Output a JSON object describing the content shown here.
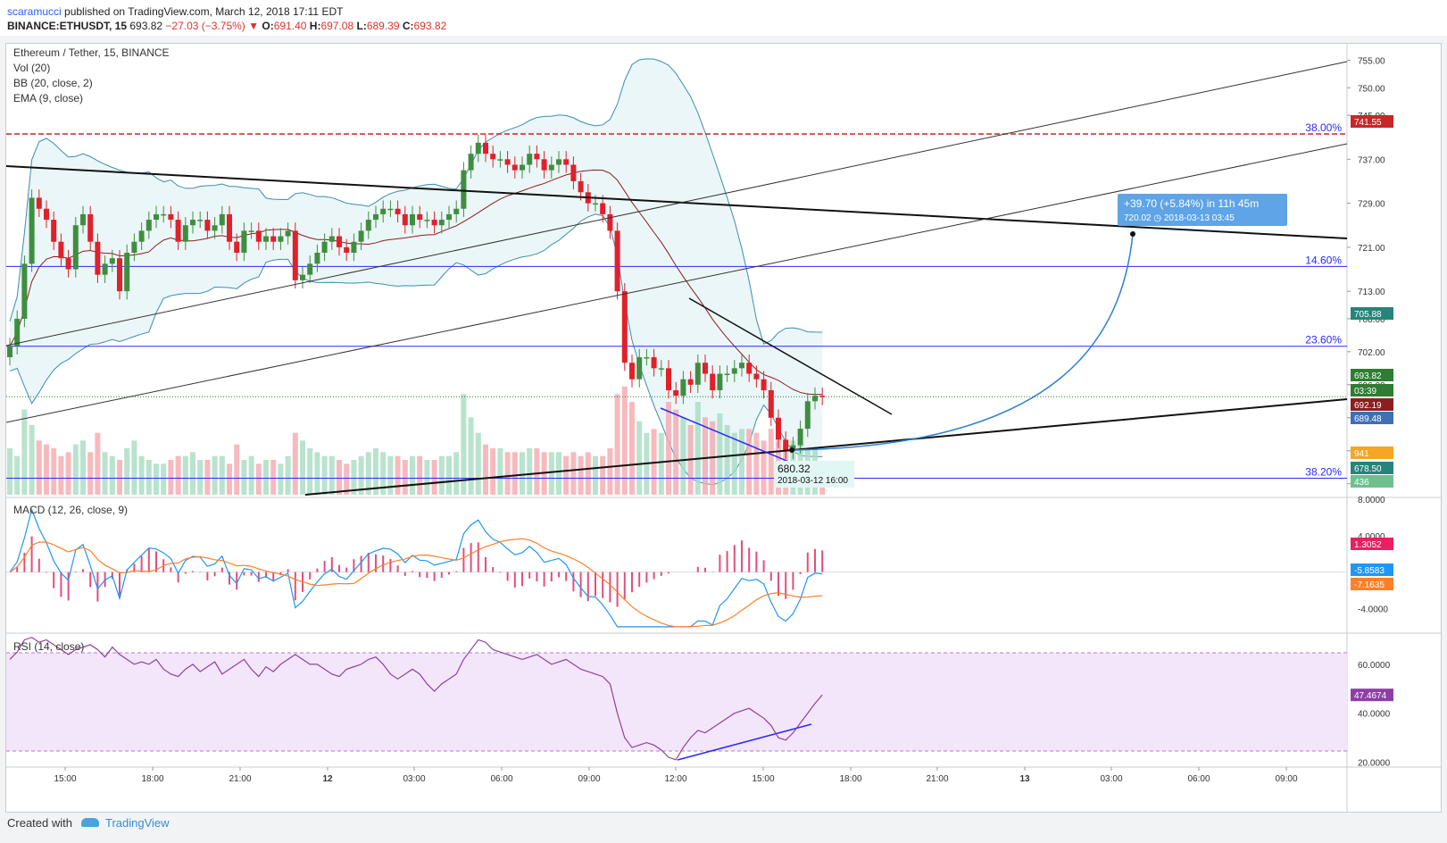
{
  "header": {
    "author": "scaramucci",
    "published": "published on TradingView.com, March 12, 2018 17:11 EDT",
    "symbol": "BINANCE:ETHUSDT, 15",
    "last": "693.82",
    "change": "−27.03 (−3.75%)",
    "arrow": "▼",
    "o_label": "O:",
    "o_value": "691.40",
    "h_label": "H:",
    "h_value": "697.08",
    "l_label": "L:",
    "l_value": "689.39",
    "c_label": "C:",
    "c_value": "693.82"
  },
  "legend": {
    "title": "Ethereum / Tether, 15, BINANCE",
    "vol": "Vol (20)",
    "bb": "BB (20, close, 2)",
    "ema": "EMA (9, close)",
    "macd": "MACD (12, 26, close, 9)",
    "rsi": "RSI (14, close)"
  },
  "footer": {
    "created": "Created with",
    "brand": "TradingView"
  },
  "colors": {
    "up": "#3f8e3f",
    "down": "#e0202a",
    "fib": "#2a2aff",
    "bb": "#3a8fa8",
    "ema": "#8b1f1f",
    "macd": "#2196f3",
    "signal": "#ff7f2a",
    "rsi": "#8e3fa6"
  },
  "chart_data": [
    {
      "type": "candlestick",
      "title": "Ethereum / Tether, 15, BINANCE",
      "ylim": [
        676,
        758
      ],
      "price_ticks": [
        "755.00",
        "750.00",
        "745.00",
        "737.00",
        "729.00",
        "721.00",
        "713.00",
        "708.00",
        "702.00",
        "696.00",
        "690.00",
        "684.00",
        "678.00"
      ],
      "time_ticks": [
        "15:00",
        "18:00",
        "21:00",
        "12",
        "03:00",
        "06:00",
        "09:00",
        "12:00",
        "15:00",
        "18:00",
        "21:00",
        "13",
        "03:00",
        "06:00",
        "09:00"
      ],
      "fib_levels": [
        {
          "label": "38.20%",
          "price": 679.0
        },
        {
          "label": "23.60%",
          "price": 703.0
        },
        {
          "label": "14.60%",
          "price": 717.5
        },
        {
          "label": "38.00%",
          "price": 741.6
        }
      ],
      "price_tags": [
        {
          "value": "741.55",
          "color": "#c62828"
        },
        {
          "value": "705.88",
          "color": "#26847a"
        },
        {
          "value": "693.82",
          "color": "#2e7d32"
        },
        {
          "value": "03:39",
          "color": "#2e7d32"
        },
        {
          "value": "692.19",
          "color": "#8b1f1f"
        },
        {
          "value": "689.48",
          "color": "#3f6fb5"
        },
        {
          "value": "941",
          "color": "#f5a623"
        },
        {
          "value": "678.50",
          "color": "#26847a"
        },
        {
          "value": "436",
          "color": "#6fbf8f"
        }
      ],
      "annotations": [
        {
          "text": "+39.70 (+5.84%) in 11h 45m"
        },
        {
          "text": "720.02  ◷ 2018-03-13  03:45"
        },
        {
          "text": "680.32"
        },
        {
          "text": "2018-03-12 16:00"
        }
      ],
      "close": [
        703,
        708,
        718,
        730,
        728,
        726,
        722,
        719,
        717,
        725,
        727,
        722,
        716,
        718,
        719,
        713,
        720,
        722,
        724,
        726,
        727,
        727,
        726,
        722,
        725,
        726,
        726,
        724,
        725,
        727,
        722,
        720,
        724,
        724,
        722,
        723,
        722,
        723,
        724,
        715,
        716,
        718,
        720,
        722,
        723,
        721,
        720,
        722,
        724,
        726,
        727,
        728,
        728,
        727,
        725,
        727,
        726,
        726,
        725,
        726,
        727,
        728,
        735,
        738,
        740,
        738,
        737,
        737,
        736,
        735,
        736,
        738,
        737,
        735,
        736,
        737,
        736,
        733,
        731,
        729,
        729,
        727,
        724,
        713,
        700,
        697,
        701,
        701,
        699,
        699,
        695,
        694,
        697,
        696,
        700,
        698,
        695,
        698,
        698,
        699,
        700,
        698,
        697,
        695,
        690,
        686,
        684,
        685,
        688,
        693,
        694,
        693.8
      ],
      "volume": [
        600,
        500,
        1100,
        900,
        700,
        650,
        600,
        500,
        550,
        650,
        700,
        550,
        800,
        550,
        500,
        450,
        600,
        700,
        500,
        450,
        400,
        400,
        450,
        500,
        500,
        550,
        450,
        450,
        500,
        500,
        400,
        650,
        450,
        500,
        400,
        450,
        450,
        400,
        500,
        800,
        700,
        600,
        550,
        500,
        500,
        450,
        400,
        450,
        500,
        550,
        600,
        550,
        500,
        500,
        450,
        500,
        500,
        450,
        450,
        500,
        500,
        550,
        1300,
        1000,
        800,
        650,
        600,
        600,
        550,
        550,
        550,
        600,
        600,
        550,
        550,
        550,
        500,
        550,
        500,
        550,
        500,
        500,
        600,
        1300,
        1400,
        1200,
        950,
        800,
        850,
        800,
        1200,
        1100,
        1000,
        900,
        1200,
        1000,
        950,
        1050,
        900,
        800,
        850,
        850,
        800,
        700,
        850,
        700,
        650,
        700,
        700,
        600,
        600,
        436
      ]
    },
    {
      "type": "line",
      "title": "MACD (12, 26, close, 9)",
      "ylim": [
        -6.5,
        8.0
      ],
      "ticks": [
        "8.0000",
        "4.0000",
        "0.0000",
        "-4.0000"
      ],
      "tags": [
        {
          "value": "1.3052",
          "color": "#e91e63"
        },
        {
          "value": "-5.8583",
          "color": "#2196f3"
        },
        {
          "value": "-7.1635",
          "color": "#ff7f2a"
        }
      ]
    },
    {
      "type": "line",
      "title": "RSI (14, close)",
      "ylim": [
        18,
        72
      ],
      "ticks": [
        "60.0000",
        "40.0000",
        "20.0000"
      ],
      "tags": [
        {
          "value": "47.4674",
          "color": "#8e3fa6"
        }
      ],
      "series": [
        {
          "values": [
            62,
            65,
            70,
            71,
            69,
            70,
            68,
            66,
            64,
            66,
            67,
            68,
            66,
            63,
            67,
            64,
            62,
            60,
            61,
            60,
            62,
            58,
            56,
            55,
            58,
            60,
            57,
            59,
            61,
            56,
            58,
            60,
            62,
            58,
            55,
            59,
            57,
            60,
            62,
            64,
            62,
            60,
            60,
            58,
            56,
            55,
            58,
            59,
            60,
            62,
            63,
            60,
            56,
            54,
            56,
            58,
            56,
            52,
            49,
            52,
            54,
            56,
            62,
            66,
            70,
            69,
            66,
            65,
            64,
            63,
            62,
            63,
            64,
            62,
            60,
            61,
            62,
            60,
            58,
            57,
            56,
            55,
            52,
            40,
            30,
            26,
            27,
            28,
            27,
            25,
            22,
            21,
            26,
            30,
            33,
            32,
            34,
            36,
            38,
            40,
            41,
            42,
            40,
            38,
            35,
            30,
            29,
            32,
            36,
            40,
            44,
            47.5
          ]
        }
      ]
    }
  ]
}
